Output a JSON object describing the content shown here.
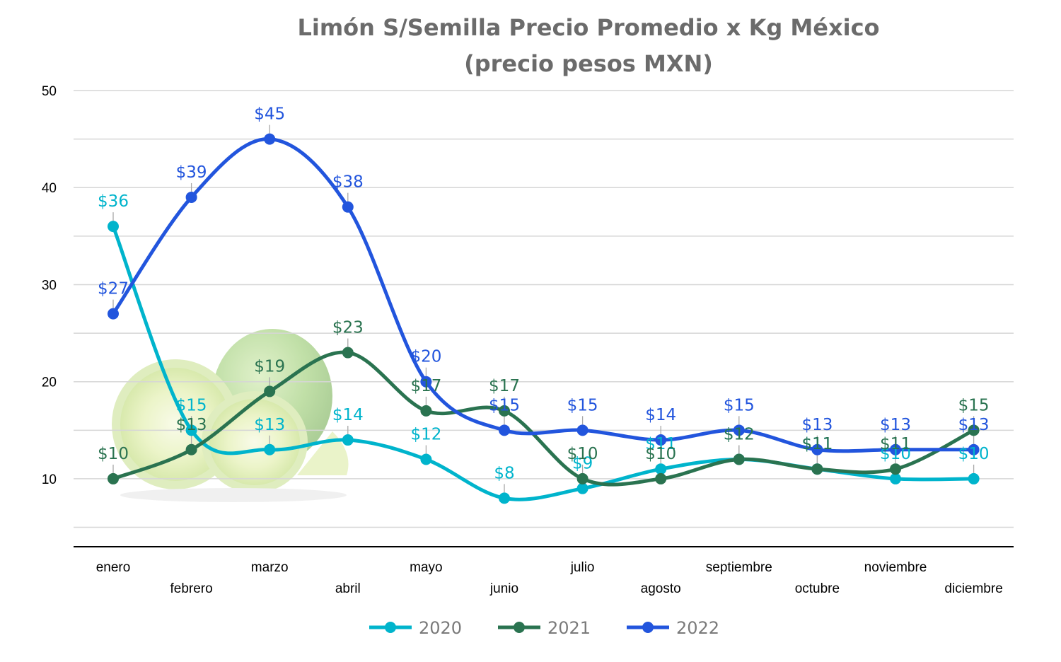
{
  "chart_data": {
    "type": "line",
    "title": "Limón S/Semilla Precio Promedio x Kg México",
    "subtitle": "(precio pesos MXN)",
    "categories": [
      "enero",
      "febrero",
      "marzo",
      "abril",
      "mayo",
      "junio",
      "julio",
      "agosto",
      "septiembre",
      "octubre",
      "noviembre",
      "diciembre"
    ],
    "series": [
      {
        "name": "2020",
        "color": "#00b4cc",
        "values": [
          36,
          15,
          13,
          14,
          12,
          8,
          9,
          11,
          12,
          11,
          10,
          10
        ],
        "labels": [
          "$36",
          "$15",
          "$13",
          "$14",
          "$12",
          "$8",
          "$9",
          "$11",
          "$12",
          "$11",
          "$10",
          "$10"
        ]
      },
      {
        "name": "2021",
        "color": "#2a7350",
        "values": [
          10,
          13,
          19,
          23,
          17,
          17,
          10,
          10,
          12,
          11,
          11,
          15
        ],
        "labels": [
          "$10",
          "$13",
          "$19",
          "$23",
          "$17",
          "$17",
          "$10",
          "$10",
          "$12",
          "$11",
          "$11",
          "$15"
        ]
      },
      {
        "name": "2022",
        "color": "#2255dd",
        "values": [
          27,
          39,
          45,
          38,
          20,
          15,
          15,
          14,
          15,
          13,
          13,
          13
        ],
        "labels": [
          "$27",
          "$39",
          "$45",
          "$38",
          "$20",
          "$15",
          "$15",
          "$14",
          "$15",
          "$13",
          "$13",
          "$13"
        ]
      }
    ],
    "yticks": [
      "10",
      "20",
      "30",
      "40",
      "50"
    ],
    "ylim": [
      3,
      50
    ],
    "grid": true,
    "smooth": true,
    "legend_position": "bottom",
    "background_image": "lime-fruit"
  }
}
